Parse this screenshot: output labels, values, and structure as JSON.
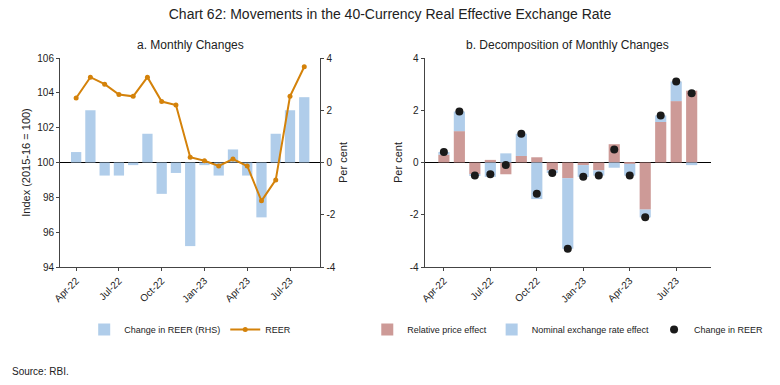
{
  "title": "Chart 62: Movements in the 40-Currency Real Effective Exchange Rate",
  "annotations": [
    "Source: RBI."
  ],
  "chart_data": [
    {
      "type": "bar",
      "title": "a. Monthly Changes",
      "categories": [
        "Apr-22",
        null,
        null,
        "Jul-22",
        null,
        null,
        "Oct-22",
        null,
        null,
        "Jan-23",
        null,
        null,
        "Apr-23",
        null,
        null,
        "Jul-23",
        null
      ],
      "series": [
        {
          "name": "Change in REER (RHS)",
          "type": "bar",
          "color": "#a8c8e8",
          "axis": "y2",
          "values": [
            0.4,
            2.0,
            -0.5,
            -0.5,
            -0.1,
            1.1,
            -1.2,
            -0.4,
            -3.2,
            -0.1,
            -0.5,
            0.5,
            -0.5,
            -2.1,
            1.1,
            2.0,
            2.5
          ]
        },
        {
          "name": "REER",
          "type": "line",
          "color": "#d4820a",
          "marker": "circle",
          "values": [
            103.7,
            104.9,
            104.5,
            103.9,
            103.8,
            104.9,
            103.5,
            103.3,
            100.3,
            100.1,
            99.8,
            100.2,
            99.8,
            97.8,
            99.0,
            103.8,
            105.5
          ]
        }
      ],
      "ylabel": "Index (2015-16 = 100)",
      "y2label": "Per cent",
      "ylim": [
        94,
        106
      ],
      "yticks": [
        94,
        96,
        98,
        100,
        102,
        104,
        106
      ],
      "y2lim": [
        -4,
        4
      ],
      "y2ticks": [
        -4,
        -2,
        0,
        2,
        4
      ],
      "grid": false,
      "legend": "bottom"
    },
    {
      "type": "bar",
      "title": "b. Decomposition of Monthly Changes",
      "categories": [
        "Apr-22",
        null,
        null,
        "Jul-22",
        null,
        null,
        "Oct-22",
        null,
        null,
        "Jan-23",
        null,
        null,
        "Apr-23",
        null,
        null,
        "Jul-23",
        null
      ],
      "stacked": true,
      "series": [
        {
          "name": "Relative price effect",
          "type": "bar",
          "color": "#c8908c",
          "values": [
            0.3,
            1.2,
            -0.45,
            0.1,
            -0.45,
            0.25,
            0.2,
            -0.3,
            -0.6,
            -0.1,
            -0.3,
            0.7,
            -0.05,
            -1.8,
            1.55,
            2.35,
            2.75
          ]
        },
        {
          "name": "Nominal exchange rate effect",
          "type": "bar",
          "color": "#a8c8e8",
          "values": [
            0.1,
            0.75,
            -0.05,
            -0.55,
            0.35,
            0.85,
            -1.4,
            -0.1,
            -2.7,
            -0.45,
            -0.2,
            -0.2,
            -0.45,
            -0.3,
            0.25,
            0.75,
            -0.1
          ]
        },
        {
          "name": "Change in REER",
          "type": "scatter",
          "color": "#1a1a1a",
          "marker": "circle",
          "values": [
            0.4,
            1.95,
            -0.5,
            -0.45,
            -0.1,
            1.1,
            -1.2,
            -0.4,
            -3.3,
            -0.55,
            -0.5,
            0.5,
            -0.5,
            -2.1,
            1.8,
            3.1,
            2.65
          ]
        }
      ],
      "ylabel": "Per cent",
      "ylim": [
        -4,
        4
      ],
      "yticks": [
        -4,
        -2,
        0,
        2,
        4
      ],
      "grid": false,
      "legend": "bottom"
    }
  ]
}
